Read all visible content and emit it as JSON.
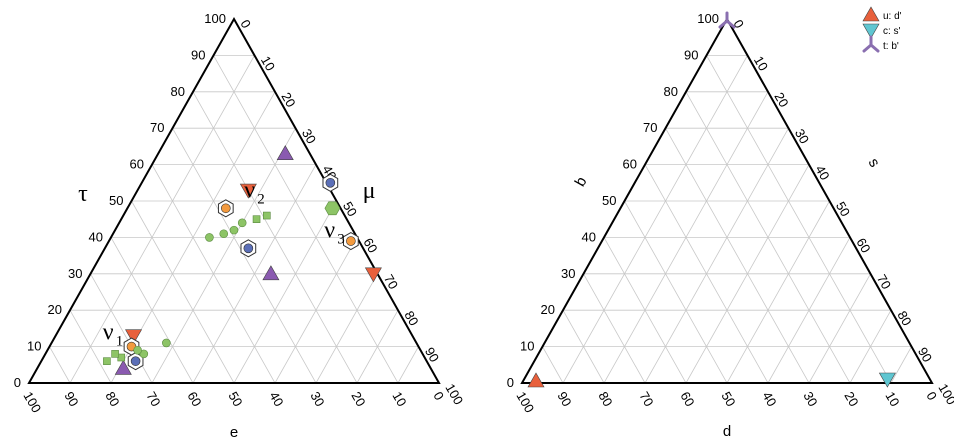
{
  "colors": {
    "up": "#e8603c",
    "down": "#5fc6d1",
    "bottom": "#8a6fb0",
    "purple_triangle": "#8a5ab0",
    "orange": "#f39a3e",
    "blue": "#5b6fb8",
    "green": "#8dc466",
    "grid": "#c8c8c8"
  },
  "legend": [
    {
      "label": "u: d'",
      "marker": "triangle-up",
      "color": "#e8603c"
    },
    {
      "label": "c: s'",
      "marker": "triangle-down",
      "color": "#5fc6d1"
    },
    {
      "label": "t: b'",
      "marker": "tripod",
      "color": "#8a6fb0"
    }
  ],
  "chart_data": [
    {
      "type": "scatter",
      "subtype": "ternary",
      "axes": {
        "left": {
          "label": "τ",
          "ticks": [
            "0",
            "10",
            "20",
            "30",
            "40",
            "50",
            "60",
            "70",
            "80",
            "90",
            "100"
          ]
        },
        "right": {
          "label": "μ",
          "ticks": [
            "0",
            "10",
            "20",
            "30",
            "40",
            "50",
            "60",
            "70",
            "80",
            "90",
            "100"
          ]
        },
        "bottom": {
          "label": "e",
          "ticks": [
            "100",
            "90",
            "80",
            "70",
            "60",
            "50",
            "40",
            "30",
            "20",
            "10",
            "0"
          ]
        }
      },
      "grid": true,
      "annotations": [
        {
          "text": "ν",
          "sub": "1",
          "tau": 12,
          "mu": 12
        },
        {
          "text": "ν",
          "sub": "2",
          "tau": 51,
          "mu": 27
        },
        {
          "text": "ν",
          "sub": "3",
          "tau": 40,
          "mu": 52
        }
      ],
      "series": [
        {
          "marker": "triangle-down",
          "color": "#e8603c",
          "points": [
            {
              "tau": 53,
              "mu": 27
            },
            {
              "tau": 30,
              "mu": 69
            },
            {
              "tau": 13,
              "mu": 19
            }
          ]
        },
        {
          "marker": "triangle-up",
          "color": "#8a5ab0",
          "points": [
            {
              "tau": 63,
              "mu": 31
            },
            {
              "tau": 30,
              "mu": 44
            },
            {
              "tau": 4,
              "mu": 21
            }
          ]
        },
        {
          "marker": "circle-in-hexagon",
          "color": "#f39a3e",
          "points": [
            {
              "tau": 48,
              "mu": 24
            },
            {
              "tau": 39,
              "mu": 59
            },
            {
              "tau": 10,
              "mu": 20
            }
          ]
        },
        {
          "marker": "circle-in-hexagon",
          "color": "#5b6fb8",
          "points": [
            {
              "tau": 55,
              "mu": 46
            },
            {
              "tau": 37,
              "mu": 35
            },
            {
              "tau": 6,
              "mu": 23
            }
          ]
        },
        {
          "marker": "hexagon",
          "color": "#8dc466",
          "points": [
            {
              "tau": 48,
              "mu": 50
            }
          ]
        },
        {
          "marker": "circle",
          "color": "#8dc466",
          "points": [
            {
              "tau": 44,
              "mu": 30
            },
            {
              "tau": 42,
              "mu": 29
            },
            {
              "tau": 41,
              "mu": 27
            },
            {
              "tau": 40,
              "mu": 24
            },
            {
              "tau": 8,
              "mu": 24
            },
            {
              "tau": 9,
              "mu": 22
            },
            {
              "tau": 11,
              "mu": 28
            }
          ]
        },
        {
          "marker": "square",
          "color": "#8dc466",
          "points": [
            {
              "tau": 45,
              "mu": 33
            },
            {
              "tau": 46,
              "mu": 35
            },
            {
              "tau": 7,
              "mu": 19
            },
            {
              "tau": 8,
              "mu": 17
            },
            {
              "tau": 6,
              "mu": 16
            }
          ]
        }
      ]
    },
    {
      "type": "scatter",
      "subtype": "ternary",
      "axes": {
        "left": {
          "label": "b",
          "ticks": [
            "0",
            "10",
            "20",
            "30",
            "40",
            "50",
            "60",
            "70",
            "80",
            "90",
            "100"
          ]
        },
        "right": {
          "label": "s",
          "ticks": [
            "0",
            "10",
            "20",
            "30",
            "40",
            "50",
            "60",
            "70",
            "80",
            "90",
            "100"
          ]
        },
        "bottom": {
          "label": "d",
          "ticks": [
            "100",
            "90",
            "80",
            "70",
            "60",
            "50",
            "40",
            "30",
            "20",
            "10",
            "0"
          ]
        }
      },
      "grid": true,
      "series": [
        {
          "name": "u: d'",
          "marker": "triangle-up",
          "color": "#e8603c",
          "points": [
            {
              "b": 0,
              "s": 0
            }
          ]
        },
        {
          "name": "c: s'",
          "marker": "triangle-down",
          "color": "#5fc6d1",
          "points": [
            {
              "b": 0,
              "s": 94
            }
          ]
        },
        {
          "name": "t: b'",
          "marker": "tripod",
          "color": "#8a6fb0",
          "points": [
            {
              "b": 100,
              "s": 0
            }
          ]
        }
      ]
    }
  ]
}
